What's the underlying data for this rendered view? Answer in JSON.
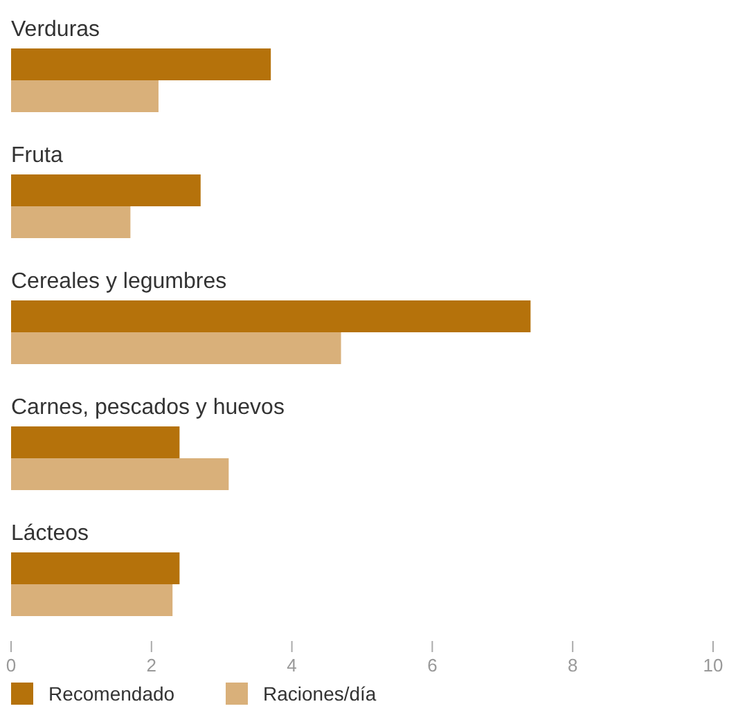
{
  "chart_data": {
    "type": "bar",
    "orientation": "horizontal",
    "categories": [
      "Verduras",
      "Fruta",
      "Cereales y legumbres",
      "Carnes, pescados y huevos",
      "Lácteos"
    ],
    "series": [
      {
        "name": "Recomendado",
        "color": "#b5720b",
        "values": [
          3.7,
          2.7,
          7.4,
          2.4,
          2.4
        ]
      },
      {
        "name": "Raciones/día",
        "color": "#d9b07a",
        "values": [
          2.1,
          1.7,
          4.7,
          3.1,
          2.3
        ]
      }
    ],
    "xlim": [
      0,
      10
    ],
    "xticks": [
      0,
      2,
      4,
      6,
      8,
      10
    ],
    "legend": "bottom"
  }
}
